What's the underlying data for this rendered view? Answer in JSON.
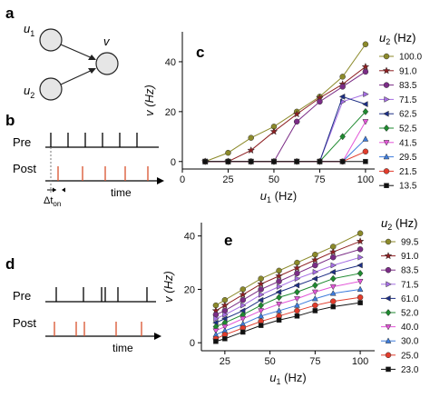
{
  "panels": {
    "a": {
      "label": "a",
      "nodes": [
        {
          "name": "u",
          "sub": "1"
        },
        {
          "name": "u",
          "sub": "2"
        },
        {
          "name": "v",
          "sub": ""
        }
      ]
    },
    "b": {
      "label": "b",
      "pre_label": "Pre",
      "post_label": "Post",
      "time_label": "time",
      "delta_label": "Δt",
      "delta_sub": "on"
    },
    "d": {
      "label": "d",
      "pre_label": "Pre",
      "post_label": "Post",
      "time_label": "time"
    }
  },
  "colors": {
    "pre_spike": "#000000",
    "post_spike": "#d9502c"
  },
  "chart_data": [
    {
      "panel": "c",
      "type": "line",
      "xlabel_main": "u",
      "xlabel_sub": "1",
      "xlabel_unit": " (Hz)",
      "ylabel": "v (Hz)",
      "xlim": [
        0,
        105
      ],
      "ylim": [
        -3,
        52
      ],
      "xticks": [
        0,
        25,
        50,
        75,
        100
      ],
      "yticks": [
        0,
        20,
        40
      ],
      "x": [
        12.5,
        25,
        37.5,
        50,
        62.5,
        75,
        87.5,
        100
      ],
      "legend_title_main": "u",
      "legend_title_sub": "2",
      "legend_title_unit": " (Hz)",
      "series": [
        {
          "name": "100.0",
          "color": "#8c8a2a",
          "marker": "circle",
          "values": [
            0,
            3.5,
            9.5,
            14,
            20,
            26,
            34,
            47
          ]
        },
        {
          "name": "91.0",
          "color": "#8e1f22",
          "marker": "star",
          "values": [
            0,
            0,
            4.5,
            12,
            19,
            25.5,
            31,
            38
          ]
        },
        {
          "name": "83.5",
          "color": "#7b2c86",
          "marker": "circle",
          "values": [
            0,
            0,
            0,
            0,
            16,
            24,
            30,
            36
          ]
        },
        {
          "name": "71.5",
          "color": "#a56ee3",
          "marker": "tri-right",
          "values": [
            0,
            0,
            0,
            0,
            0,
            0,
            24,
            27
          ]
        },
        {
          "name": "62.5",
          "color": "#1d2f85",
          "marker": "tri-left",
          "values": [
            0,
            0,
            0,
            0,
            0,
            0,
            26,
            23
          ]
        },
        {
          "name": "52.5",
          "color": "#1e8a2f",
          "marker": "diamond",
          "values": [
            0,
            0,
            0,
            0,
            0,
            0,
            10,
            20
          ]
        },
        {
          "name": "41.5",
          "color": "#e356d8",
          "marker": "tri-down",
          "values": [
            0,
            0,
            0,
            0,
            0,
            0,
            0,
            16
          ]
        },
        {
          "name": "29.5",
          "color": "#3d7cdc",
          "marker": "tri-up",
          "values": [
            0,
            0,
            0,
            0,
            0,
            0,
            0,
            9
          ]
        },
        {
          "name": "21.5",
          "color": "#e23c2c",
          "marker": "circle",
          "values": [
            0,
            0,
            0,
            0,
            0,
            0,
            0,
            4
          ]
        },
        {
          "name": "13.5",
          "color": "#111111",
          "marker": "square",
          "values": [
            0,
            0,
            0,
            0,
            0,
            0,
            0,
            0
          ]
        }
      ]
    },
    {
      "panel": "e",
      "type": "line",
      "xlabel_main": "u",
      "xlabel_sub": "1",
      "xlabel_unit": " (Hz)",
      "ylabel": "v (Hz)",
      "xlim": [
        12,
        108
      ],
      "ylim": [
        -3,
        45
      ],
      "xticks": [
        25,
        50,
        75,
        100
      ],
      "yticks": [
        0,
        20,
        40
      ],
      "x": [
        20,
        25,
        35,
        45,
        55,
        65,
        75,
        85,
        100
      ],
      "legend_title_main": "u",
      "legend_title_sub": "2",
      "legend_title_unit": " (Hz)",
      "series": [
        {
          "name": "99.5",
          "color": "#8c8a2a",
          "marker": "circle",
          "values": [
            14,
            16,
            20,
            24,
            27,
            30,
            33,
            36,
            41
          ]
        },
        {
          "name": "91.0",
          "color": "#8e1f22",
          "marker": "star",
          "values": [
            12,
            14,
            18,
            22,
            25,
            28,
            31,
            34,
            38
          ]
        },
        {
          "name": "83.5",
          "color": "#7b2c86",
          "marker": "circle",
          "values": [
            10.5,
            12,
            16,
            20,
            23,
            26,
            29,
            32,
            35
          ]
        },
        {
          "name": "71.5",
          "color": "#a56ee3",
          "marker": "tri-right",
          "values": [
            9,
            10.5,
            14,
            18,
            21,
            24,
            26.5,
            29,
            32
          ]
        },
        {
          "name": "61.0",
          "color": "#1d2f85",
          "marker": "tri-left",
          "values": [
            7.5,
            9,
            12,
            16,
            19,
            21.5,
            24,
            26.5,
            29
          ]
        },
        {
          "name": "52.0",
          "color": "#1e8a2f",
          "marker": "diamond",
          "values": [
            6,
            7.5,
            10.5,
            14,
            17,
            19,
            21.5,
            24,
            26
          ]
        },
        {
          "name": "40.0",
          "color": "#e356d8",
          "marker": "tri-down",
          "values": [
            4.5,
            6,
            9,
            12,
            14.5,
            16.5,
            19,
            21,
            23
          ]
        },
        {
          "name": "30.0",
          "color": "#3d7cdc",
          "marker": "tri-up",
          "values": [
            3,
            4.5,
            7,
            10,
            12,
            14,
            16.5,
            18.5,
            20
          ]
        },
        {
          "name": "25.0",
          "color": "#e23c2c",
          "marker": "circle",
          "values": [
            1.5,
            3,
            5.5,
            8,
            10,
            12,
            14,
            15.5,
            17
          ]
        },
        {
          "name": "23.0",
          "color": "#111111",
          "marker": "square",
          "values": [
            0.5,
            1.5,
            4,
            6.5,
            8.5,
            10,
            12,
            13.5,
            15
          ]
        }
      ]
    }
  ]
}
